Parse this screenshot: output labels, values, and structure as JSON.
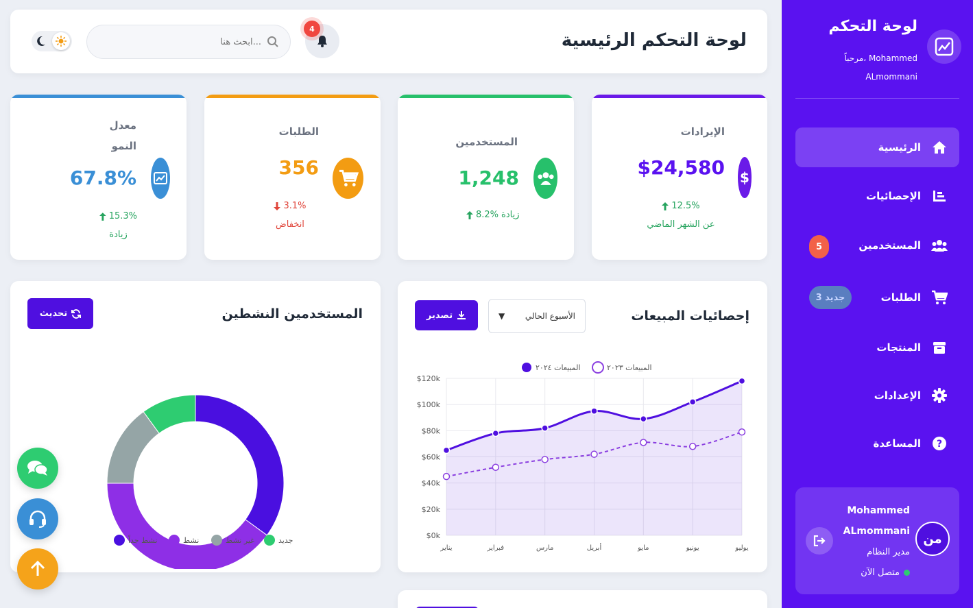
{
  "header": {
    "title": "لوحة التحكم الرئيسية",
    "search_placeholder": "ابحث هنا...",
    "notif_count": "4"
  },
  "sidebar": {
    "brand": "لوحة التحكم",
    "greeting": "مرحباً، Mohammed ALmommani",
    "items": [
      {
        "label": "الرئيسية",
        "icon": "home-icon",
        "active": true
      },
      {
        "label": "الإحصائيات",
        "icon": "chart-icon"
      },
      {
        "label": "المستخدمين",
        "icon": "users-icon",
        "badge": "5"
      },
      {
        "label": "الطلبات",
        "icon": "cart-icon",
        "badge": "3 جديد"
      },
      {
        "label": "المنتجات",
        "icon": "box-icon"
      },
      {
        "label": "الإعدادات",
        "icon": "gear-icon"
      },
      {
        "label": "المساعدة",
        "icon": "help-icon"
      }
    ],
    "user": {
      "name_first": "Mohammed",
      "name_last": "ALmommani",
      "role": "مدير النظام",
      "status": "متصل الآن",
      "avatar": "من"
    },
    "colors": {
      "bg": "#5a12f0"
    }
  },
  "stats": [
    {
      "label": "الإيرادات",
      "value": "$24,580",
      "change_pct": "12.5%",
      "change_text": "عن الشهر الماضي",
      "direction": "up",
      "color": "#5a12f0"
    },
    {
      "label": "المستخدمين",
      "value": "1,248",
      "change_pct": "8.2%",
      "change_text": "زيادة",
      "direction": "up",
      "color": "#27c06b"
    },
    {
      "label": "الطلبات",
      "value": "356",
      "change_pct": "3.1%",
      "change_text": "انخفاض",
      "direction": "down",
      "color": "#f39c12"
    },
    {
      "label_line1": "معدل",
      "label_line2": "النمو",
      "value": "67.8%",
      "change_pct": "15.3%",
      "change_text": "زيادة",
      "direction": "up",
      "color": "#3a8fd6"
    }
  ],
  "sales": {
    "title": "إحصائيات المبيعات",
    "period_select": "الأسبوع الحالي",
    "export_label": "تصدير"
  },
  "active_users": {
    "title": "المستخدمين النشطين",
    "refresh_label": "تحديث"
  },
  "chart_data": [
    {
      "type": "line",
      "x": [
        "يناير",
        "فبراير",
        "مارس",
        "أبريل",
        "مايو",
        "يونيو",
        "يوليو"
      ],
      "series": [
        {
          "name": "المبيعات ٢٠٢٤",
          "values": [
            65000,
            78000,
            82000,
            95000,
            89000,
            102000,
            118000
          ],
          "color": "#4f0fe0"
        },
        {
          "name": "المبيعات ٢٠٢٣",
          "values": [
            45000,
            52000,
            58000,
            62000,
            71000,
            68000,
            79000
          ],
          "color": "#8a3ee0"
        }
      ],
      "y_ticks": [
        "$0k",
        "$20k",
        "$40k",
        "$60k",
        "$80k",
        "$100k",
        "$120k"
      ],
      "ylim": [
        0,
        120000
      ],
      "legend": "top"
    },
    {
      "type": "pie",
      "categories": [
        "نشط جداً",
        "نشط",
        "غير نشط",
        "جديد"
      ],
      "values": [
        35,
        40,
        15,
        10
      ],
      "colors": [
        "#4a0fe0",
        "#8e2fe6",
        "#95a5a6",
        "#2ecc71"
      ],
      "legend": "bottom"
    }
  ]
}
